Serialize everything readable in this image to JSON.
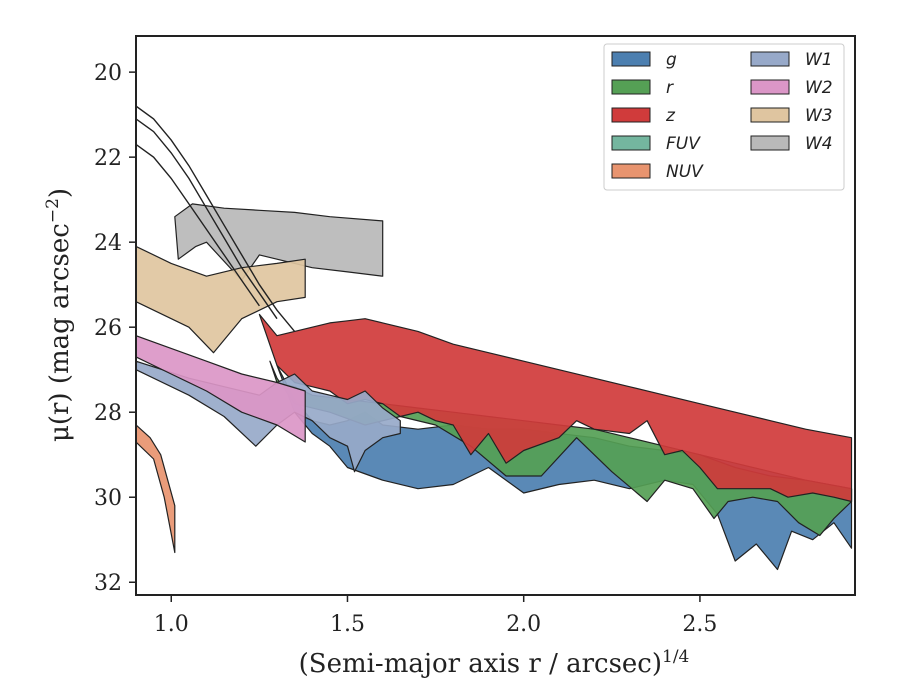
{
  "chart_data": {
    "type": "area",
    "xlabel": "(Semi-major axis r / arcsec)",
    "xlabel_sup": "1/4",
    "ylabel": "μ(r) (mag arcsec",
    "ylabel_sup": "−2",
    "ylabel_end": ")",
    "xlim": [
      0.9,
      2.94
    ],
    "ylim": [
      32.3,
      19.15
    ],
    "y_inverted": true,
    "xticks": [
      1.0,
      1.5,
      2.0,
      2.5
    ],
    "xtick_labels": [
      "1.0",
      "1.5",
      "2.0",
      "2.5"
    ],
    "yticks": [
      20,
      22,
      24,
      26,
      28,
      30,
      32
    ],
    "ytick_labels": [
      "20",
      "22",
      "24",
      "26",
      "28",
      "30",
      "32"
    ],
    "grid": false,
    "legend_position": "top-right",
    "legend_columns": 2,
    "series": [
      {
        "name": "g",
        "color": "#4c7fb0",
        "band": [
          [
            1.3,
            26.9
          ],
          [
            1.35,
            27.7
          ],
          [
            1.4,
            28.2
          ],
          [
            1.45,
            28.3
          ],
          [
            1.5,
            28.2
          ],
          [
            1.55,
            28.0
          ],
          [
            1.6,
            28.3
          ],
          [
            1.7,
            28.4
          ],
          [
            1.8,
            28.3
          ],
          [
            1.9,
            28.4
          ],
          [
            2.0,
            28.4
          ],
          [
            2.1,
            28.5
          ],
          [
            2.2,
            28.6
          ],
          [
            2.3,
            28.8
          ],
          [
            2.4,
            28.9
          ],
          [
            2.5,
            29.0
          ],
          [
            2.6,
            29.2
          ],
          [
            2.7,
            29.4
          ],
          [
            2.8,
            29.6
          ],
          [
            2.93,
            29.8
          ],
          [
            2.93,
            31.2
          ],
          [
            2.88,
            30.6
          ],
          [
            2.82,
            31.0
          ],
          [
            2.76,
            30.8
          ],
          [
            2.72,
            31.7
          ],
          [
            2.66,
            31.1
          ],
          [
            2.6,
            31.5
          ],
          [
            2.55,
            30.4
          ],
          [
            2.48,
            29.7
          ],
          [
            2.4,
            29.6
          ],
          [
            2.3,
            29.8
          ],
          [
            2.2,
            29.6
          ],
          [
            2.1,
            29.7
          ],
          [
            2.0,
            29.9
          ],
          [
            1.9,
            29.3
          ],
          [
            1.8,
            29.7
          ],
          [
            1.7,
            29.8
          ],
          [
            1.6,
            29.6
          ],
          [
            1.5,
            29.3
          ],
          [
            1.45,
            28.8
          ],
          [
            1.4,
            28.5
          ],
          [
            1.35,
            28.0
          ]
        ]
      },
      {
        "name": "r",
        "color": "#55a055",
        "band": [
          [
            1.28,
            26.8
          ],
          [
            1.3,
            27.3
          ],
          [
            1.35,
            27.4
          ],
          [
            1.4,
            27.6
          ],
          [
            1.5,
            27.7
          ],
          [
            1.6,
            27.8
          ],
          [
            1.7,
            27.9
          ],
          [
            1.8,
            28.0
          ],
          [
            1.9,
            28.1
          ],
          [
            2.0,
            28.2
          ],
          [
            2.1,
            28.3
          ],
          [
            2.2,
            28.4
          ],
          [
            2.3,
            28.6
          ],
          [
            2.4,
            28.8
          ],
          [
            2.5,
            29.0
          ],
          [
            2.6,
            29.3
          ],
          [
            2.7,
            29.5
          ],
          [
            2.8,
            29.6
          ],
          [
            2.93,
            29.8
          ],
          [
            2.93,
            30.1
          ],
          [
            2.88,
            30.5
          ],
          [
            2.84,
            30.9
          ],
          [
            2.78,
            30.6
          ],
          [
            2.72,
            30.1
          ],
          [
            2.65,
            30.0
          ],
          [
            2.58,
            30.1
          ],
          [
            2.54,
            30.5
          ],
          [
            2.48,
            29.8
          ],
          [
            2.4,
            29.6
          ],
          [
            2.35,
            30.1
          ],
          [
            2.25,
            29.4
          ],
          [
            2.15,
            28.6
          ],
          [
            2.05,
            29.5
          ],
          [
            1.95,
            29.5
          ],
          [
            1.85,
            28.8
          ],
          [
            1.75,
            28.3
          ],
          [
            1.65,
            28.1
          ],
          [
            1.55,
            28.3
          ],
          [
            1.45,
            28.0
          ],
          [
            1.35,
            27.8
          ],
          [
            1.3,
            27.2
          ]
        ]
      },
      {
        "name": "z",
        "color": "#d03b3b",
        "band": [
          [
            1.25,
            25.7
          ],
          [
            1.3,
            26.2
          ],
          [
            1.35,
            26.1
          ],
          [
            1.4,
            26.0
          ],
          [
            1.45,
            25.9
          ],
          [
            1.5,
            25.85
          ],
          [
            1.55,
            25.8
          ],
          [
            1.6,
            25.9
          ],
          [
            1.7,
            26.1
          ],
          [
            1.8,
            26.4
          ],
          [
            1.9,
            26.6
          ],
          [
            2.0,
            26.8
          ],
          [
            2.1,
            27.0
          ],
          [
            2.2,
            27.2
          ],
          [
            2.3,
            27.4
          ],
          [
            2.4,
            27.6
          ],
          [
            2.5,
            27.8
          ],
          [
            2.6,
            28.0
          ],
          [
            2.7,
            28.2
          ],
          [
            2.8,
            28.4
          ],
          [
            2.93,
            28.6
          ],
          [
            2.93,
            30.1
          ],
          [
            2.88,
            30.0
          ],
          [
            2.82,
            29.9
          ],
          [
            2.75,
            30.0
          ],
          [
            2.7,
            29.8
          ],
          [
            2.62,
            29.8
          ],
          [
            2.55,
            29.8
          ],
          [
            2.5,
            29.3
          ],
          [
            2.45,
            28.9
          ],
          [
            2.4,
            29.0
          ],
          [
            2.35,
            28.2
          ],
          [
            2.3,
            28.5
          ],
          [
            2.2,
            28.4
          ],
          [
            2.15,
            28.2
          ],
          [
            2.1,
            28.6
          ],
          [
            2.0,
            28.9
          ],
          [
            1.95,
            29.2
          ],
          [
            1.9,
            28.5
          ],
          [
            1.85,
            29.0
          ],
          [
            1.8,
            28.3
          ],
          [
            1.75,
            28.2
          ],
          [
            1.7,
            28.0
          ],
          [
            1.65,
            28.1
          ],
          [
            1.6,
            27.8
          ],
          [
            1.55,
            27.7
          ],
          [
            1.5,
            27.8
          ],
          [
            1.45,
            27.5
          ],
          [
            1.4,
            27.4
          ],
          [
            1.35,
            27.3
          ],
          [
            1.3,
            26.9
          ]
        ]
      },
      {
        "name": "FUV",
        "color": "#74b69f",
        "band": []
      },
      {
        "name": "NUV",
        "color": "#e8946f",
        "band": [
          [
            0.9,
            28.3
          ],
          [
            0.94,
            28.6
          ],
          [
            0.97,
            29.0
          ],
          [
            1.01,
            30.2
          ],
          [
            1.01,
            31.3
          ],
          [
            0.98,
            30.0
          ],
          [
            0.95,
            29.1
          ],
          [
            0.9,
            28.7
          ]
        ]
      },
      {
        "name": "W1",
        "color": "#97a9c9",
        "band": [
          [
            0.9,
            26.8
          ],
          [
            1.05,
            27.2
          ],
          [
            1.15,
            27.4
          ],
          [
            1.25,
            27.6
          ],
          [
            1.3,
            27.3
          ],
          [
            1.35,
            27.1
          ],
          [
            1.4,
            27.5
          ],
          [
            1.45,
            27.6
          ],
          [
            1.5,
            27.7
          ],
          [
            1.55,
            27.5
          ],
          [
            1.6,
            27.9
          ],
          [
            1.65,
            28.2
          ],
          [
            1.65,
            28.5
          ],
          [
            1.6,
            28.6
          ],
          [
            1.55,
            28.9
          ],
          [
            1.52,
            29.4
          ],
          [
            1.5,
            28.8
          ],
          [
            1.45,
            28.6
          ],
          [
            1.4,
            28.2
          ],
          [
            1.35,
            28.0
          ],
          [
            1.3,
            28.3
          ],
          [
            1.24,
            28.8
          ],
          [
            1.15,
            28.1
          ],
          [
            1.05,
            27.6
          ],
          [
            0.9,
            27.0
          ]
        ]
      },
      {
        "name": "W2",
        "color": "#db96c7",
        "band": [
          [
            0.9,
            26.2
          ],
          [
            1.0,
            26.5
          ],
          [
            1.1,
            26.8
          ],
          [
            1.2,
            27.1
          ],
          [
            1.3,
            27.3
          ],
          [
            1.38,
            27.5
          ],
          [
            1.38,
            28.7
          ],
          [
            1.3,
            28.3
          ],
          [
            1.2,
            28.0
          ],
          [
            1.1,
            27.5
          ],
          [
            1.0,
            27.1
          ],
          [
            0.9,
            26.7
          ]
        ]
      },
      {
        "name": "W3",
        "color": "#dfc5a0",
        "band": [
          [
            0.9,
            24.1
          ],
          [
            1.0,
            24.5
          ],
          [
            1.1,
            24.8
          ],
          [
            1.2,
            24.6
          ],
          [
            1.3,
            24.5
          ],
          [
            1.38,
            24.4
          ],
          [
            1.38,
            25.3
          ],
          [
            1.3,
            25.4
          ],
          [
            1.2,
            25.8
          ],
          [
            1.12,
            26.6
          ],
          [
            1.05,
            26.0
          ],
          [
            0.9,
            25.4
          ]
        ]
      },
      {
        "name": "W4",
        "color": "#b9b9b9",
        "band": [
          [
            1.01,
            23.4
          ],
          [
            1.06,
            23.1
          ],
          [
            1.15,
            23.2
          ],
          [
            1.25,
            23.25
          ],
          [
            1.35,
            23.3
          ],
          [
            1.45,
            23.4
          ],
          [
            1.6,
            23.5
          ],
          [
            1.6,
            24.8
          ],
          [
            1.5,
            24.7
          ],
          [
            1.4,
            24.6
          ],
          [
            1.3,
            24.4
          ],
          [
            1.25,
            24.3
          ],
          [
            1.2,
            24.9
          ],
          [
            1.1,
            24.0
          ],
          [
            1.07,
            24.1
          ],
          [
            1.02,
            24.4
          ]
        ]
      }
    ],
    "model_lines": [
      [
        [
          0.9,
          20.8
        ],
        [
          0.95,
          21.1
        ],
        [
          1.0,
          21.6
        ],
        [
          1.05,
          22.2
        ],
        [
          1.1,
          22.9
        ],
        [
          1.15,
          23.6
        ],
        [
          1.2,
          24.3
        ],
        [
          1.25,
          25.0
        ],
        [
          1.3,
          25.6
        ],
        [
          1.35,
          26.1
        ]
      ],
      [
        [
          0.9,
          21.1
        ],
        [
          0.95,
          21.4
        ],
        [
          1.0,
          21.9
        ],
        [
          1.05,
          22.5
        ],
        [
          1.1,
          23.2
        ],
        [
          1.15,
          23.9
        ],
        [
          1.2,
          24.6
        ],
        [
          1.25,
          25.2
        ],
        [
          1.3,
          25.8
        ]
      ],
      [
        [
          0.9,
          21.7
        ],
        [
          0.95,
          22.0
        ],
        [
          1.0,
          22.5
        ],
        [
          1.05,
          23.1
        ],
        [
          1.1,
          23.7
        ],
        [
          1.15,
          24.3
        ],
        [
          1.2,
          24.9
        ],
        [
          1.25,
          25.5
        ]
      ]
    ]
  }
}
